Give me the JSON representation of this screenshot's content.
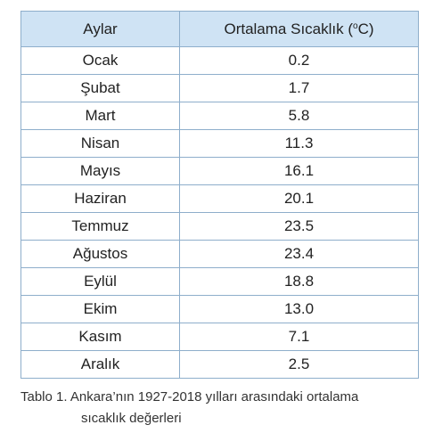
{
  "table": {
    "header": [
      "Aylar",
      {
        "before": "Ortalama Sıcaklık (",
        "sup": "o",
        "after": "C)"
      }
    ],
    "rows": [
      [
        "Ocak",
        "0.2"
      ],
      [
        "Şubat",
        "1.7"
      ],
      [
        "Mart",
        "5.8"
      ],
      [
        "Nisan",
        "11.3"
      ],
      [
        "Mayıs",
        "16.1"
      ],
      [
        "Haziran",
        "20.1"
      ],
      [
        "Temmuz",
        "23.5"
      ],
      [
        "Ağustos",
        "23.4"
      ],
      [
        "Eylül",
        "18.8"
      ],
      [
        "Ekim",
        "13.0"
      ],
      [
        "Kasım",
        "7.1"
      ],
      [
        "Aralık",
        "2.5"
      ]
    ]
  },
  "caption": [
    "Tablo 1. Ankara’nın 1927-2018 yılları arasındaki ortalama",
    "sıcaklık değerleri"
  ]
}
